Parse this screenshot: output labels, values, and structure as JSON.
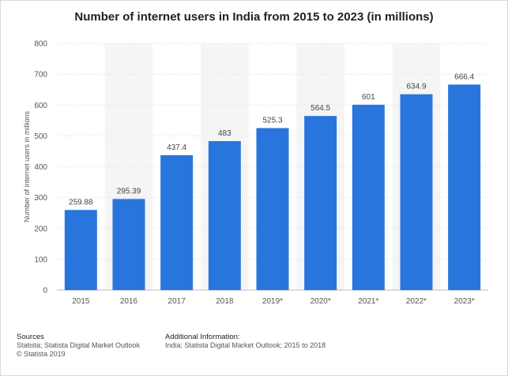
{
  "chart_data": {
    "type": "bar",
    "title": "Number of internet users in India from 2015 to 2023 (in millions)",
    "xlabel": "",
    "ylabel": "Number of internet users in millions",
    "categories": [
      "2015",
      "2016",
      "2017",
      "2018",
      "2019*",
      "2020*",
      "2021*",
      "2022*",
      "2023*"
    ],
    "values": [
      259.88,
      295.39,
      437.4,
      483,
      525.3,
      564.5,
      601,
      634.9,
      666.4
    ],
    "value_labels": [
      "259.88",
      "295.39",
      "437.4",
      "483",
      "525.3",
      "564.5",
      "601",
      "634.9",
      "666.4"
    ],
    "ylim": [
      0,
      800
    ],
    "yticks": [
      "0",
      "100",
      "200",
      "300",
      "400",
      "500",
      "600",
      "700",
      "800"
    ],
    "grid": true,
    "legend": "none",
    "colors": {
      "bar": "#2876dd",
      "alt_band": "#f5f5f5",
      "grid": "#dedede"
    }
  },
  "footer": {
    "sources_heading": "Sources",
    "sources_line1": "Statista; Statista Digital Market Outlook",
    "sources_line2": "© Statista 2019",
    "additional_heading": "Additional Information:",
    "additional_line1": "India; Statista Digital Market Outlook; 2015 to 2018"
  }
}
